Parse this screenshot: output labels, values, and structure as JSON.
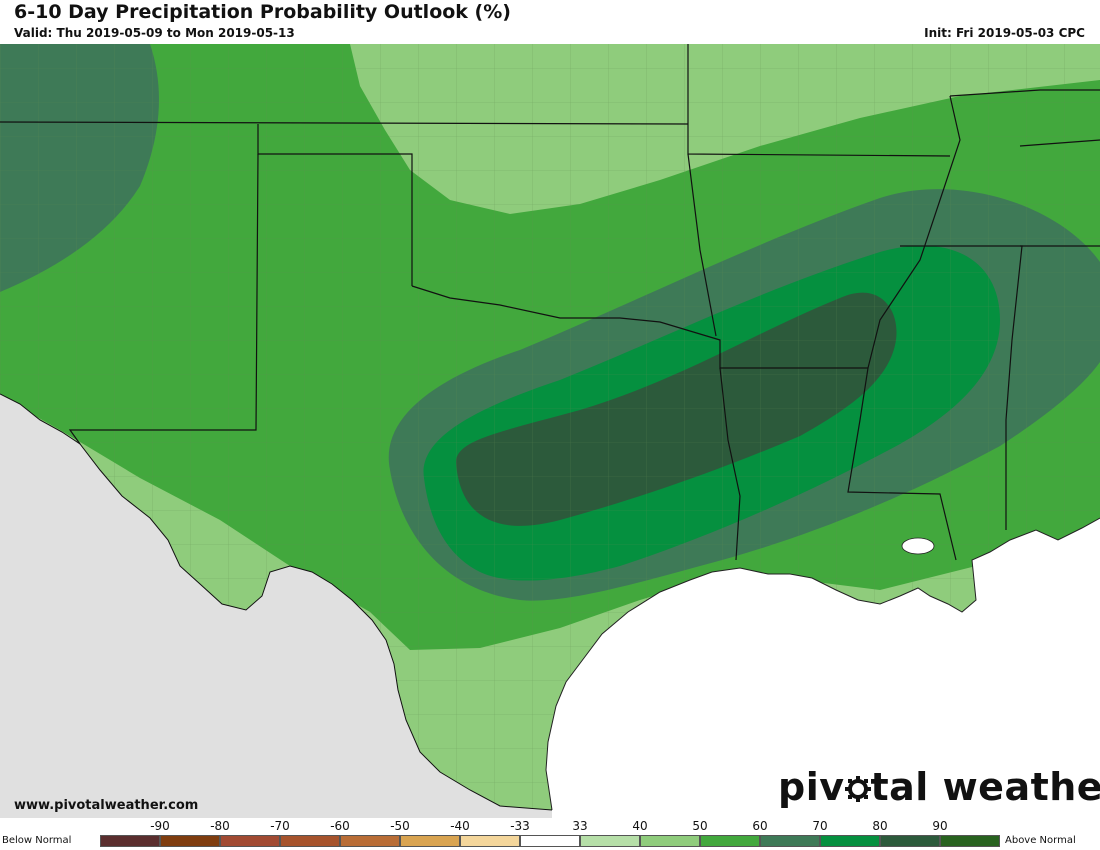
{
  "header": {
    "title": "6-10 Day Precipitation Probability Outlook (%)",
    "valid": "Valid: Thu 2019-05-09 to Mon 2019-05-13",
    "init": "Init: Fri 2019-05-03 CPC"
  },
  "footer": {
    "website": "www.pivotalweather.com",
    "logo_part1": "piv",
    "logo_part2": "tal weather"
  },
  "map": {
    "features": [
      "state-borders",
      "county-borders",
      "gulf-of-mexico",
      "mexico"
    ],
    "colors": {
      "mexico": "#e0e0e0",
      "gulf": "#ffffff",
      "borders": "#111111",
      "counties": "#5e8a52"
    }
  },
  "legend": {
    "below_label": "Below Normal",
    "above_label": "Above Normal",
    "tick_labels": [
      "-90",
      "-80",
      "-70",
      "-60",
      "-50",
      "-40",
      "-33",
      "33",
      "40",
      "50",
      "60",
      "70",
      "80",
      "90"
    ],
    "swatches": [
      "#5a2e2e",
      "#7f3d0f",
      "#a14a32",
      "#a6532c",
      "#b96d36",
      "#d9a451",
      "#f4d69b",
      "#ffffff",
      "#b6dfa8",
      "#8fcc7c",
      "#42a83d",
      "#3e7a57",
      "#05903f",
      "#2c5a3b",
      "#28621f"
    ]
  }
}
